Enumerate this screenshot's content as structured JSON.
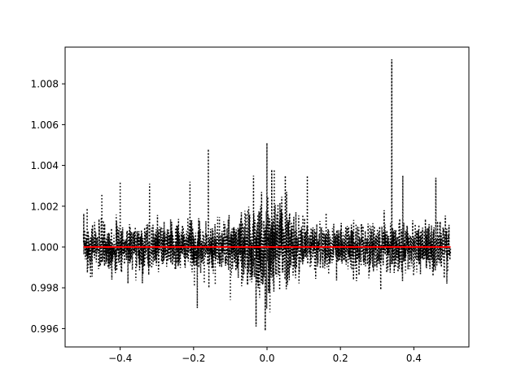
{
  "chart_data": {
    "type": "line",
    "title": "",
    "xlabel": "",
    "ylabel": "",
    "xlim": [
      -0.55,
      0.55
    ],
    "ylim": [
      0.9951,
      1.0098
    ],
    "x_ticks": [
      -0.4,
      -0.2,
      0.0,
      0.2,
      0.4
    ],
    "x_tick_labels": [
      "−0.4",
      "−0.2",
      "0.0",
      "0.2",
      "0.4"
    ],
    "y_ticks": [
      0.996,
      0.998,
      1.0,
      1.002,
      1.004,
      1.006,
      1.008
    ],
    "y_tick_labels": [
      "0.996",
      "0.998",
      "1.000",
      "1.002",
      "1.004",
      "1.006",
      "1.008"
    ],
    "grid": false,
    "series": [
      {
        "style": "dotted",
        "color": "#000000",
        "x_range": [
          -0.5,
          0.5
        ],
        "baseline": 1.0,
        "typical_scatter": [
          0.9985,
          1.0015
        ],
        "notable_points": [
          {
            "x": -0.49,
            "y": 1.0019
          },
          {
            "x": -0.45,
            "y": 1.0026
          },
          {
            "x": -0.4,
            "y": 1.0032
          },
          {
            "x": -0.32,
            "y": 1.0031
          },
          {
            "x": -0.21,
            "y": 1.0032
          },
          {
            "x": -0.19,
            "y": 0.997
          },
          {
            "x": -0.16,
            "y": 1.0048
          },
          {
            "x": -0.1,
            "y": 0.9974
          },
          {
            "x": -0.03,
            "y": 0.9961
          },
          {
            "x": -0.015,
            "y": 1.0027
          },
          {
            "x": -0.005,
            "y": 0.9959
          },
          {
            "x": 0.0,
            "y": 1.0051
          },
          {
            "x": 0.008,
            "y": 0.9968
          },
          {
            "x": 0.02,
            "y": 1.0038
          },
          {
            "x": 0.05,
            "y": 1.0035
          },
          {
            "x": 0.11,
            "y": 1.0035
          },
          {
            "x": 0.31,
            "y": 0.9979
          },
          {
            "x": 0.34,
            "y": 1.0092
          },
          {
            "x": 0.37,
            "y": 1.0035
          },
          {
            "x": 0.46,
            "y": 1.0034
          },
          {
            "x": 0.49,
            "y": 0.9982
          }
        ]
      },
      {
        "style": "solid",
        "color": "#ff0000",
        "x": [
          -0.5,
          0.5
        ],
        "y": [
          1.0,
          1.0
        ]
      }
    ]
  }
}
